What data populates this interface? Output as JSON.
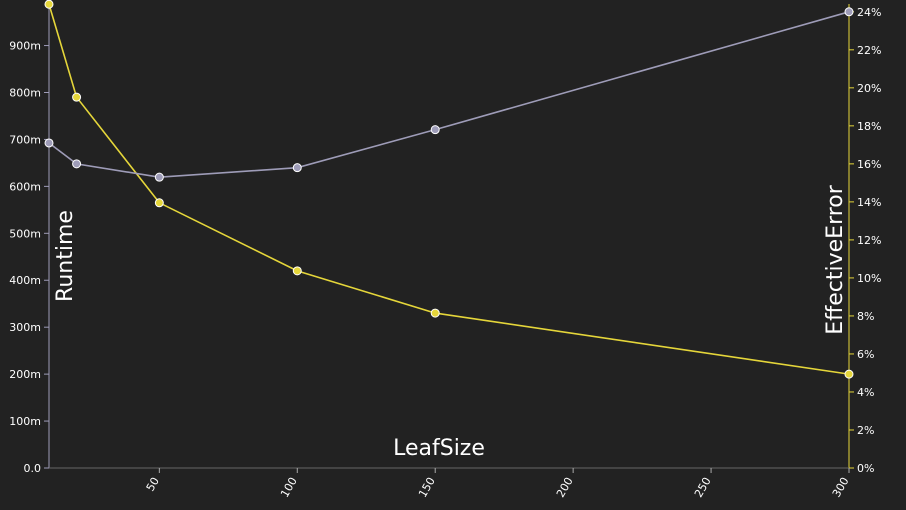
{
  "chart_data": {
    "type": "line",
    "xlabel": "LeafSize",
    "ylabel_left": "Runtime",
    "ylabel_right": "EffectiveError",
    "xlim": [
      10,
      300
    ],
    "x_ticks": [
      50,
      100,
      150,
      200,
      250,
      300
    ],
    "ylim_left": [
      0,
      0.98
    ],
    "y_left_ticks": [
      {
        "value": 0.0,
        "label": "0.0"
      },
      {
        "value": 0.1,
        "label": "100m"
      },
      {
        "value": 0.2,
        "label": "200m"
      },
      {
        "value": 0.3,
        "label": "300m"
      },
      {
        "value": 0.4,
        "label": "400m"
      },
      {
        "value": 0.5,
        "label": "500m"
      },
      {
        "value": 0.6,
        "label": "600m"
      },
      {
        "value": 0.7,
        "label": "700m"
      },
      {
        "value": 0.8,
        "label": "800m"
      },
      {
        "value": 0.9,
        "label": "900m"
      }
    ],
    "ylim_right": [
      0,
      0.242
    ],
    "y_right_ticks": [
      {
        "value": 0.0,
        "label": "0%"
      },
      {
        "value": 0.02,
        "label": "2%"
      },
      {
        "value": 0.04,
        "label": "4%"
      },
      {
        "value": 0.06,
        "label": "6%"
      },
      {
        "value": 0.08,
        "label": "8%"
      },
      {
        "value": 0.1,
        "label": "10%"
      },
      {
        "value": 0.12,
        "label": "12%"
      },
      {
        "value": 0.14,
        "label": "14%"
      },
      {
        "value": 0.16,
        "label": "16%"
      },
      {
        "value": 0.18,
        "label": "18%"
      },
      {
        "value": 0.2,
        "label": "20%"
      },
      {
        "value": 0.22,
        "label": "22%"
      },
      {
        "value": 0.24,
        "label": "24%"
      }
    ],
    "series": [
      {
        "axis": "left",
        "color": "#e5d63a",
        "x": [
          10,
          20,
          50,
          100,
          150,
          300
        ],
        "values": [
          0.988,
          0.79,
          0.565,
          0.42,
          0.33,
          0.2
        ]
      },
      {
        "axis": "right",
        "color": "#9e9cb8",
        "x": [
          10,
          20,
          50,
          100,
          150,
          300
        ],
        "values": [
          0.171,
          0.16,
          0.153,
          0.158,
          0.178,
          0.24
        ]
      }
    ],
    "grid": false,
    "legend": "none"
  }
}
